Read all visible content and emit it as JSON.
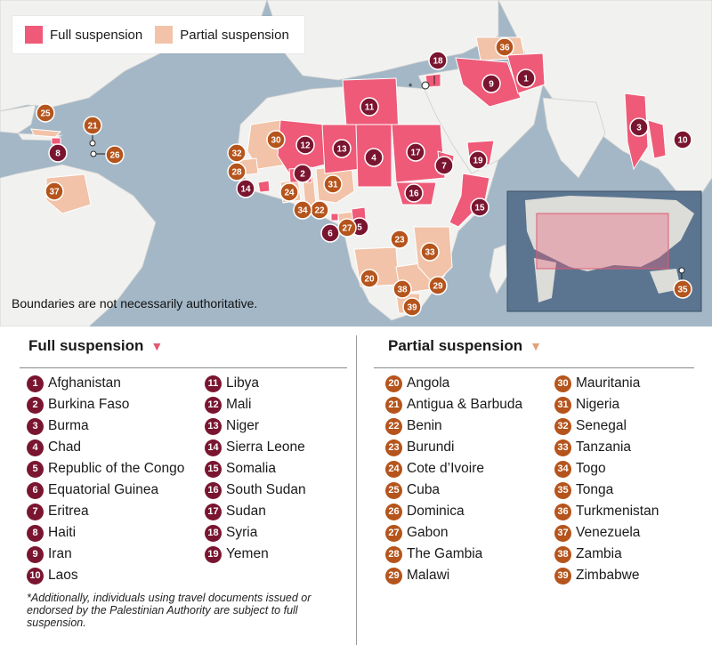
{
  "legend": {
    "full_label": "Full suspension",
    "partial_label": "Partial suspension"
  },
  "colors": {
    "ocean": "#a3b7c6",
    "land": "#f1f1ef",
    "full_fill": "#ee5a78",
    "partial_fill": "#f2c3a8",
    "full_badge": "#7a1530",
    "partial_badge": "#b5541c"
  },
  "map": {
    "boundary_note": "Boundaries are not necessarily authoritative.",
    "asterisk": "*",
    "markers": [
      {
        "n": "1",
        "kind": "full"
      },
      {
        "n": "2",
        "kind": "full"
      },
      {
        "n": "3",
        "kind": "full"
      },
      {
        "n": "4",
        "kind": "full"
      },
      {
        "n": "5",
        "kind": "full"
      },
      {
        "n": "6",
        "kind": "full"
      },
      {
        "n": "7",
        "kind": "full"
      },
      {
        "n": "8",
        "kind": "full"
      },
      {
        "n": "9",
        "kind": "full"
      },
      {
        "n": "10",
        "kind": "full"
      },
      {
        "n": "11",
        "kind": "full"
      },
      {
        "n": "12",
        "kind": "full"
      },
      {
        "n": "13",
        "kind": "full"
      },
      {
        "n": "14",
        "kind": "full"
      },
      {
        "n": "15",
        "kind": "full"
      },
      {
        "n": "16",
        "kind": "full"
      },
      {
        "n": "17",
        "kind": "full"
      },
      {
        "n": "18",
        "kind": "full"
      },
      {
        "n": "19",
        "kind": "full"
      },
      {
        "n": "20",
        "kind": "partial"
      },
      {
        "n": "21",
        "kind": "partial"
      },
      {
        "n": "22",
        "kind": "partial"
      },
      {
        "n": "23",
        "kind": "partial"
      },
      {
        "n": "24",
        "kind": "partial"
      },
      {
        "n": "25",
        "kind": "partial"
      },
      {
        "n": "26",
        "kind": "partial"
      },
      {
        "n": "27",
        "kind": "partial"
      },
      {
        "n": "28",
        "kind": "partial"
      },
      {
        "n": "29",
        "kind": "partial"
      },
      {
        "n": "30",
        "kind": "partial"
      },
      {
        "n": "31",
        "kind": "partial"
      },
      {
        "n": "32",
        "kind": "partial"
      },
      {
        "n": "33",
        "kind": "partial"
      },
      {
        "n": "34",
        "kind": "partial"
      },
      {
        "n": "35",
        "kind": "partial"
      },
      {
        "n": "36",
        "kind": "partial"
      },
      {
        "n": "37",
        "kind": "partial"
      },
      {
        "n": "38",
        "kind": "partial"
      },
      {
        "n": "39",
        "kind": "partial"
      }
    ]
  },
  "full_list": {
    "header": "Full suspension",
    "col1": [
      {
        "n": "1",
        "name": "Afghanistan"
      },
      {
        "n": "2",
        "name": "Burkina Faso"
      },
      {
        "n": "3",
        "name": "Burma"
      },
      {
        "n": "4",
        "name": "Chad"
      },
      {
        "n": "5",
        "name": "Republic of the Congo"
      },
      {
        "n": "6",
        "name": "Equatorial Guinea"
      },
      {
        "n": "7",
        "name": "Eritrea"
      },
      {
        "n": "8",
        "name": "Haiti"
      },
      {
        "n": "9",
        "name": "Iran"
      },
      {
        "n": "10",
        "name": "Laos"
      }
    ],
    "col2": [
      {
        "n": "11",
        "name": "Libya"
      },
      {
        "n": "12",
        "name": "Mali"
      },
      {
        "n": "13",
        "name": "Niger"
      },
      {
        "n": "14",
        "name": "Sierra Leone"
      },
      {
        "n": "15",
        "name": "Somalia"
      },
      {
        "n": "16",
        "name": "South Sudan"
      },
      {
        "n": "17",
        "name": "Sudan"
      },
      {
        "n": "18",
        "name": "Syria"
      },
      {
        "n": "19",
        "name": "Yemen"
      }
    ]
  },
  "partial_list": {
    "header": "Partial suspension",
    "col1": [
      {
        "n": "20",
        "name": "Angola"
      },
      {
        "n": "21",
        "name": "Antigua & Barbuda"
      },
      {
        "n": "22",
        "name": "Benin"
      },
      {
        "n": "23",
        "name": "Burundi"
      },
      {
        "n": "24",
        "name": "Cote d’Ivoire"
      },
      {
        "n": "25",
        "name": "Cuba"
      },
      {
        "n": "26",
        "name": "Dominica"
      },
      {
        "n": "27",
        "name": "Gabon"
      },
      {
        "n": "28",
        "name": "The Gambia"
      },
      {
        "n": "29",
        "name": "Malawi"
      }
    ],
    "col2": [
      {
        "n": "30",
        "name": "Mauritania"
      },
      {
        "n": "31",
        "name": "Nigeria"
      },
      {
        "n": "32",
        "name": "Senegal"
      },
      {
        "n": "33",
        "name": "Tanzania"
      },
      {
        "n": "34",
        "name": "Togo"
      },
      {
        "n": "35",
        "name": "Tonga"
      },
      {
        "n": "36",
        "name": "Turkmenistan"
      },
      {
        "n": "37",
        "name": "Venezuela"
      },
      {
        "n": "38",
        "name": "Zambia"
      },
      {
        "n": "39",
        "name": "Zimbabwe"
      }
    ]
  },
  "footnote": "*Additionally, individuals using travel documents issued or endorsed by the Palestinian Authority are subject to full suspension."
}
